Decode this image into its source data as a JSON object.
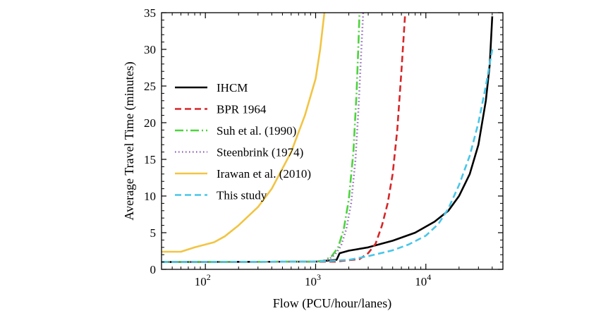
{
  "chart_data": {
    "type": "line",
    "title": "",
    "xlabel": "Flow (PCU/hour/lanes)",
    "ylabel": "Average Travel Time (minutes)",
    "xscale": "log",
    "xlim": [
      40,
      50000
    ],
    "ylim": [
      0,
      35
    ],
    "xticks": [
      {
        "value": 100,
        "base": "10",
        "exp": "2"
      },
      {
        "value": 1000,
        "base": "10",
        "exp": "3"
      },
      {
        "value": 10000,
        "base": "10",
        "exp": "4"
      }
    ],
    "yticks": [
      0,
      5,
      10,
      15,
      20,
      25,
      30,
      35
    ],
    "grid": false,
    "legend_position": "center-left",
    "series": [
      {
        "name": "IHCM",
        "color": "#000000",
        "dash": "solid",
        "points": [
          [
            40,
            1.0
          ],
          [
            1000,
            1.05
          ],
          [
            1550,
            1.3
          ],
          [
            1650,
            2.2
          ],
          [
            2000,
            2.55
          ],
          [
            3000,
            3.0
          ],
          [
            5000,
            3.9
          ],
          [
            8000,
            5.0
          ],
          [
            12000,
            6.5
          ],
          [
            16000,
            8.0
          ],
          [
            20000,
            10.0
          ],
          [
            25000,
            13.0
          ],
          [
            30000,
            17.0
          ],
          [
            35000,
            23.0
          ],
          [
            38000,
            28.0
          ],
          [
            40000,
            34.5
          ]
        ]
      },
      {
        "name": "BPR 1964",
        "color": "#d62728",
        "dash": "dashed",
        "points": [
          [
            40,
            1.0
          ],
          [
            1500,
            1.05
          ],
          [
            2500,
            1.4
          ],
          [
            3000,
            2.2
          ],
          [
            3500,
            3.5
          ],
          [
            4000,
            6.0
          ],
          [
            4500,
            9.0
          ],
          [
            5000,
            13.0
          ],
          [
            5500,
            19.0
          ],
          [
            6000,
            27.0
          ],
          [
            6500,
            35.0
          ]
        ]
      },
      {
        "name": "Suh et al. (1990)",
        "color": "#4cd43c",
        "dash": "dashdot",
        "points": [
          [
            40,
            1.0
          ],
          [
            1000,
            1.05
          ],
          [
            1200,
            1.2
          ],
          [
            1400,
            1.8
          ],
          [
            1600,
            3.0
          ],
          [
            1800,
            5.5
          ],
          [
            2000,
            9.5
          ],
          [
            2200,
            16.0
          ],
          [
            2350,
            24.0
          ],
          [
            2450,
            31.0
          ],
          [
            2500,
            35.0
          ]
        ]
      },
      {
        "name": "Steenbrink (1974)",
        "color": "#9467bd",
        "dash": "dotted",
        "points": [
          [
            40,
            1.0
          ],
          [
            1000,
            1.05
          ],
          [
            1300,
            1.3
          ],
          [
            1500,
            2.0
          ],
          [
            1700,
            3.2
          ],
          [
            1900,
            5.5
          ],
          [
            2100,
            9.0
          ],
          [
            2300,
            15.0
          ],
          [
            2450,
            22.0
          ],
          [
            2600,
            30.0
          ],
          [
            2700,
            35.0
          ]
        ]
      },
      {
        "name": "Irawan et al. (2010)",
        "color": "#f2c443",
        "dash": "solid",
        "points": [
          [
            40,
            2.4
          ],
          [
            60,
            2.4
          ],
          [
            80,
            3.0
          ],
          [
            120,
            3.7
          ],
          [
            150,
            4.5
          ],
          [
            200,
            6.0
          ],
          [
            300,
            8.5
          ],
          [
            400,
            11.0
          ],
          [
            600,
            16.0
          ],
          [
            800,
            21.0
          ],
          [
            1000,
            26.0
          ],
          [
            1100,
            30.0
          ],
          [
            1200,
            35.0
          ]
        ]
      },
      {
        "name": "This study",
        "color": "#48c6e8",
        "dash": "dashed",
        "points": [
          [
            40,
            1.0
          ],
          [
            1000,
            1.05
          ],
          [
            2000,
            1.3
          ],
          [
            3000,
            1.8
          ],
          [
            5000,
            2.6
          ],
          [
            7000,
            3.4
          ],
          [
            10000,
            4.6
          ],
          [
            13000,
            6.2
          ],
          [
            16000,
            8.3
          ],
          [
            20000,
            11.5
          ],
          [
            25000,
            15.5
          ],
          [
            30000,
            20.0
          ],
          [
            35000,
            25.0
          ],
          [
            40000,
            30.0
          ]
        ]
      }
    ]
  }
}
